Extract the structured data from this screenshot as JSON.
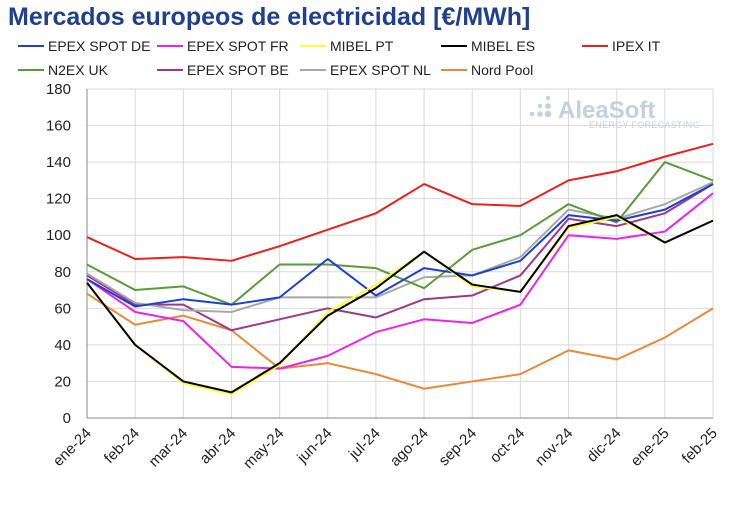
{
  "chart_data": {
    "type": "line",
    "title": "Mercados europeos de electricidad [€/MWh]",
    "xlabel": "",
    "ylabel": "",
    "ylim": [
      0,
      180
    ],
    "yticks": [
      0,
      20,
      40,
      60,
      80,
      100,
      120,
      140,
      160,
      180
    ],
    "grid": true,
    "legend_position": "top",
    "categories": [
      "ene-24",
      "feb-24",
      "mar-24",
      "abr-24",
      "may-24",
      "jun-24",
      "jul-24",
      "ago-24",
      "sep-24",
      "oct-24",
      "nov-24",
      "dic-24",
      "ene-25",
      "feb-25"
    ],
    "series": [
      {
        "name": "EPEX SPOT DE",
        "color": "#1f3fcf",
        "values": [
          76,
          61,
          65,
          62,
          66,
          87,
          67,
          82,
          78,
          86,
          111,
          108,
          114,
          128
        ]
      },
      {
        "name": "EPEX SPOT FR",
        "color": "#e825e8",
        "values": [
          76,
          58,
          53,
          28,
          27,
          34,
          47,
          54,
          52,
          62,
          100,
          98,
          102,
          123
        ]
      },
      {
        "name": "MIBEL PT",
        "color": "#ffff33",
        "values": [
          74,
          40,
          19,
          13,
          29,
          58,
          73,
          91,
          72,
          69,
          104,
          110,
          96,
          108
        ]
      },
      {
        "name": "MIBEL ES",
        "color": "#000000",
        "values": [
          74,
          40,
          20,
          14,
          30,
          56,
          71,
          91,
          73,
          69,
          105,
          111,
          96,
          108
        ]
      },
      {
        "name": "IPEX IT",
        "color": "#e8201f",
        "values": [
          99,
          87,
          88,
          86,
          94,
          103,
          112,
          128,
          117,
          116,
          130,
          135,
          143,
          150
        ]
      },
      {
        "name": "N2EX UK",
        "color": "#5b9a3c",
        "values": [
          84,
          70,
          72,
          62,
          84,
          84,
          82,
          71,
          92,
          100,
          117,
          107,
          140,
          130
        ]
      },
      {
        "name": "EPEX SPOT BE",
        "color": "#9a3a8f",
        "values": [
          78,
          62,
          62,
          48,
          54,
          60,
          55,
          65,
          67,
          78,
          109,
          105,
          112,
          128
        ]
      },
      {
        "name": "EPEX SPOT NL",
        "color": "#a8a8a8",
        "values": [
          79,
          63,
          59,
          58,
          66,
          66,
          66,
          77,
          78,
          88,
          114,
          109,
          117,
          129
        ]
      },
      {
        "name": "Nord Pool",
        "color": "#e8893a",
        "values": [
          68,
          51,
          56,
          48,
          27,
          30,
          24,
          16,
          20,
          24,
          37,
          32,
          44,
          60
        ]
      }
    ]
  },
  "watermark": {
    "brand": "AleaSoft",
    "tagline": "ENERGY FORECASTING"
  }
}
